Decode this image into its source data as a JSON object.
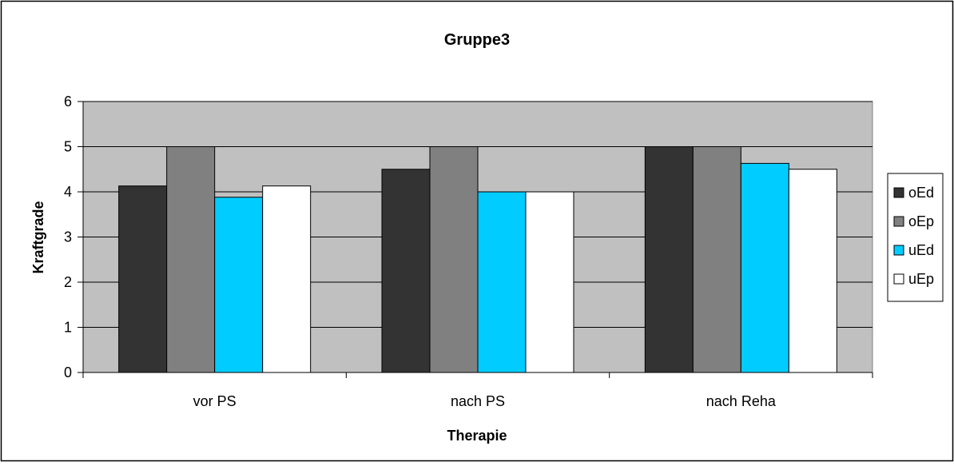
{
  "chart_data": {
    "type": "bar",
    "title": "Gruppe3",
    "xlabel": "Therapie",
    "ylabel": "Kraftgrade",
    "categories": [
      "vor PS",
      "nach PS",
      "nach Reha"
    ],
    "series": [
      {
        "name": "oEd",
        "values": [
          4.13,
          4.5,
          5
        ],
        "color": "#333333"
      },
      {
        "name": "oEp",
        "values": [
          5,
          5,
          5
        ],
        "color": "#808080"
      },
      {
        "name": "uEd",
        "values": [
          3.88,
          4,
          4.63
        ],
        "color": "#00ccff"
      },
      {
        "name": "uEp",
        "values": [
          4.13,
          4,
          4.5
        ],
        "color": "#ffffff"
      }
    ],
    "ylim": [
      0,
      6
    ],
    "yticks": [
      "0",
      "1",
      "2",
      "3",
      "4",
      "5",
      "6"
    ],
    "grid": true,
    "plot_background": "#c0c0c0",
    "legend_position": "right"
  }
}
